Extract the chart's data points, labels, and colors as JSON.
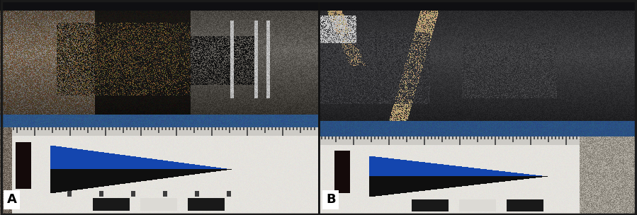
{
  "figsize": [
    8.99,
    3.04
  ],
  "dpi": 100,
  "background_color": "#111111",
  "panel_A": {
    "label": "A",
    "core_colors": {
      "base_dark": [
        25,
        25,
        30
      ],
      "sulphide": [
        15,
        15,
        18
      ],
      "tan_vein": [
        140,
        110,
        70
      ],
      "grey_light": [
        180,
        175,
        165
      ],
      "white_quartz": [
        200,
        195,
        185
      ]
    },
    "tray_color": [
      45,
      80,
      130
    ],
    "card_color": [
      230,
      228,
      222
    ],
    "ruler_color": [
      210,
      208,
      202
    ],
    "arrow_blue": "#1a4fa0",
    "arrow_black": "#111111",
    "black_bar": "#1a1010"
  },
  "panel_B": {
    "label": "B",
    "core_colors": {
      "base_dark": [
        55,
        60,
        65
      ],
      "sulphide": [
        40,
        42,
        48
      ],
      "tan_vein": [
        160,
        130,
        85
      ],
      "grey_light": [
        160,
        158,
        150
      ],
      "white_quartz": [
        210,
        205,
        195
      ]
    },
    "tray_color": [
      45,
      80,
      130
    ],
    "card_color": [
      230,
      228,
      222
    ],
    "ruler_color": [
      210,
      208,
      202
    ],
    "arrow_blue": "#1a4fa0",
    "arrow_black": "#111111",
    "black_bar": "#1a1010"
  },
  "label_fontsize": 13,
  "label_fontweight": "bold"
}
